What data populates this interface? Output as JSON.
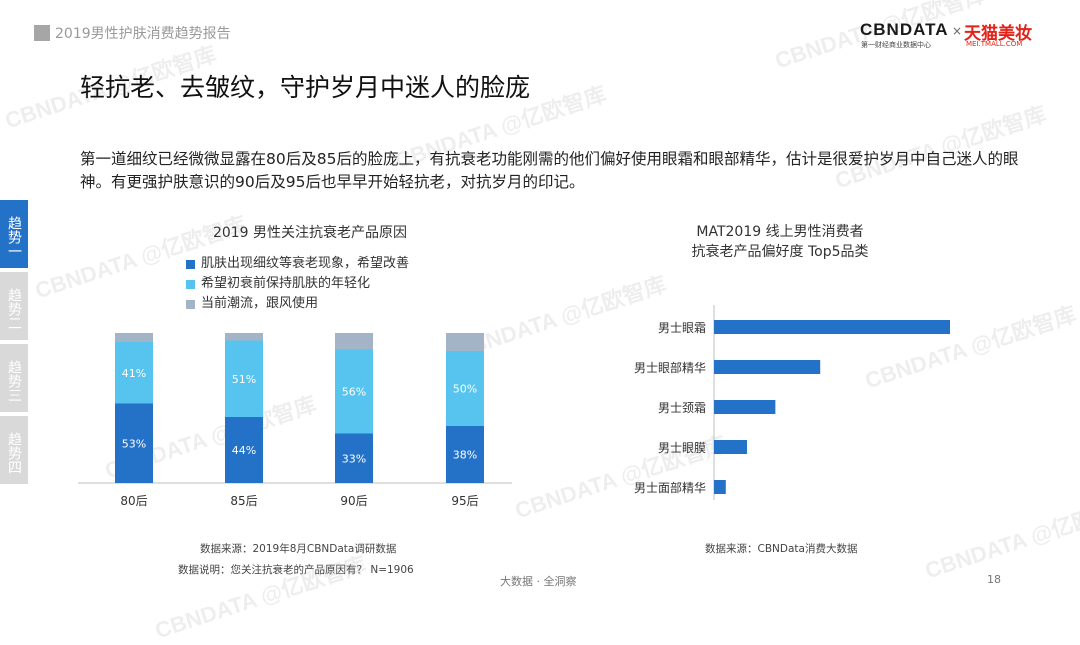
{
  "header": {
    "report_title": "2019男性护肤消费趋势报告"
  },
  "logo": {
    "cbn": "CBNDATA",
    "cbn_sub": "第一财经商业数据中心",
    "times": "×",
    "tmall": "天猫美妆",
    "tmall_sub": "MEI.TMALL.COM"
  },
  "page_title": "轻抗老、去皱纹，守护岁月中迷人的脸庞",
  "description": "第一道细纹已经微微显露在80后及85后的脸庞上，有抗衰老功能刚需的他们偏好使用眼霜和眼部精华，估计是很爱护岁月中自己迷人的眼神。有更强护肤意识的90后及95后也早早开始轻抗老，对抗岁月的印记。",
  "side_tabs": [
    {
      "label": "趋势一",
      "active": true
    },
    {
      "label": "趋势二",
      "active": false
    },
    {
      "label": "趋势三",
      "active": false
    },
    {
      "label": "趋势四",
      "active": false
    }
  ],
  "watermark": "CBNDATA @亿欧智库",
  "colors": {
    "dark_blue": "#2472c8",
    "light_blue": "#56c4ee",
    "gray": "#a3b4c6",
    "bar_blue": "#2472c8"
  },
  "chart_data": [
    {
      "type": "bar",
      "stacked": true,
      "percent": true,
      "title": "2019 男性关注抗衰老产品原因",
      "categories": [
        "80后",
        "85后",
        "90后",
        "95后"
      ],
      "series": [
        {
          "name": "肌肤出现细纹等衰老现象，希望改善",
          "values": [
            53,
            44,
            33,
            38
          ],
          "labels": [
            "53%",
            "44%",
            "33%",
            "38%"
          ],
          "color": "#2472c8"
        },
        {
          "name": "希望初衰前保持肌肤的年轻化",
          "values": [
            41,
            51,
            56,
            50
          ],
          "labels": [
            "41%",
            "51%",
            "56%",
            "50%"
          ],
          "color": "#56c4ee"
        },
        {
          "name": "当前潮流，跟风使用",
          "values": [
            6,
            5,
            11,
            12
          ],
          "color": "#a3b4c6"
        }
      ],
      "ylim": [
        0,
        100
      ],
      "source": "数据来源：2019年8月CBNData调研数据",
      "note": "数据说明：您关注抗衰老的产品原因有？ N=1906"
    },
    {
      "type": "bar",
      "orientation": "horizontal",
      "title_line1": "MAT2019 线上男性消费者",
      "title_line2": "抗衰老产品偏好度 Top5品类",
      "categories": [
        "男士眼霜",
        "男士眼部精华",
        "男士颈霜",
        "男士眼膜",
        "男士面部精华"
      ],
      "values": [
        100,
        45,
        26,
        14,
        5
      ],
      "source": "数据来源：CBNData消费大数据"
    }
  ],
  "footer": {
    "center": "大数据 · 全洞察",
    "page": "18"
  }
}
